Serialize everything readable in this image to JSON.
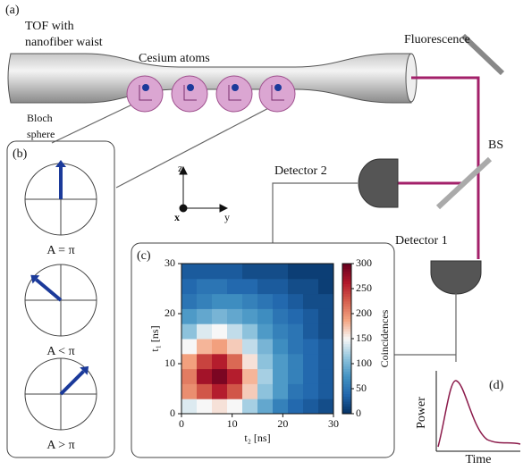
{
  "panel_a": {
    "label": "(a)",
    "fiber_label": [
      "TOF with",
      "nanofiber waist"
    ],
    "atoms_label": "Cesium atoms",
    "fluorescence": "Fluorescence",
    "bs": "BS",
    "detector2": "Detector 2",
    "detector1": "Detector 1",
    "bloch_label": [
      "Bloch",
      "sphere"
    ],
    "axes": {
      "z": "z",
      "x": "x",
      "y": "y"
    }
  },
  "panel_b": {
    "label": "(b)",
    "cases": [
      "A = π",
      "A < π",
      "A > π"
    ]
  },
  "panel_d": {
    "label": "(d)",
    "ylabel": "Power",
    "xlabel": "Time"
  },
  "chart_data": {
    "type": "heatmap",
    "label": "(c)",
    "xlabel": "t₂ [ns]",
    "ylabel": "t₁ [ns]",
    "colorbar_label": "Coincidences",
    "xlim": [
      0,
      30
    ],
    "ylim": [
      0,
      30
    ],
    "xticks": [
      0,
      10,
      20,
      30
    ],
    "yticks": [
      0,
      10,
      20,
      30
    ],
    "clim": [
      0,
      300
    ],
    "cticks": [
      0,
      50,
      100,
      150,
      200,
      250,
      300
    ],
    "colormap": [
      "#053061",
      "#2166ac",
      "#4393c3",
      "#92c5de",
      "#f7f7f7",
      "#f4a582",
      "#d6604d",
      "#b2182b",
      "#67001f"
    ],
    "z": [
      [
        140,
        150,
        160,
        150,
        120,
        90,
        60,
        40,
        30,
        20
      ],
      [
        200,
        230,
        260,
        230,
        170,
        110,
        80,
        50,
        40,
        30
      ],
      [
        210,
        270,
        290,
        260,
        180,
        120,
        80,
        60,
        40,
        30
      ],
      [
        190,
        240,
        260,
        220,
        160,
        110,
        80,
        60,
        40,
        30
      ],
      [
        150,
        180,
        190,
        170,
        130,
        100,
        70,
        50,
        40,
        30
      ],
      [
        110,
        140,
        150,
        130,
        110,
        80,
        60,
        50,
        30,
        20
      ],
      [
        80,
        90,
        100,
        90,
        80,
        70,
        50,
        40,
        30,
        20
      ],
      [
        50,
        60,
        70,
        70,
        60,
        50,
        40,
        30,
        20,
        20
      ],
      [
        40,
        50,
        50,
        40,
        40,
        30,
        30,
        20,
        20,
        10
      ],
      [
        30,
        30,
        30,
        30,
        20,
        20,
        20,
        10,
        10,
        10
      ]
    ]
  }
}
